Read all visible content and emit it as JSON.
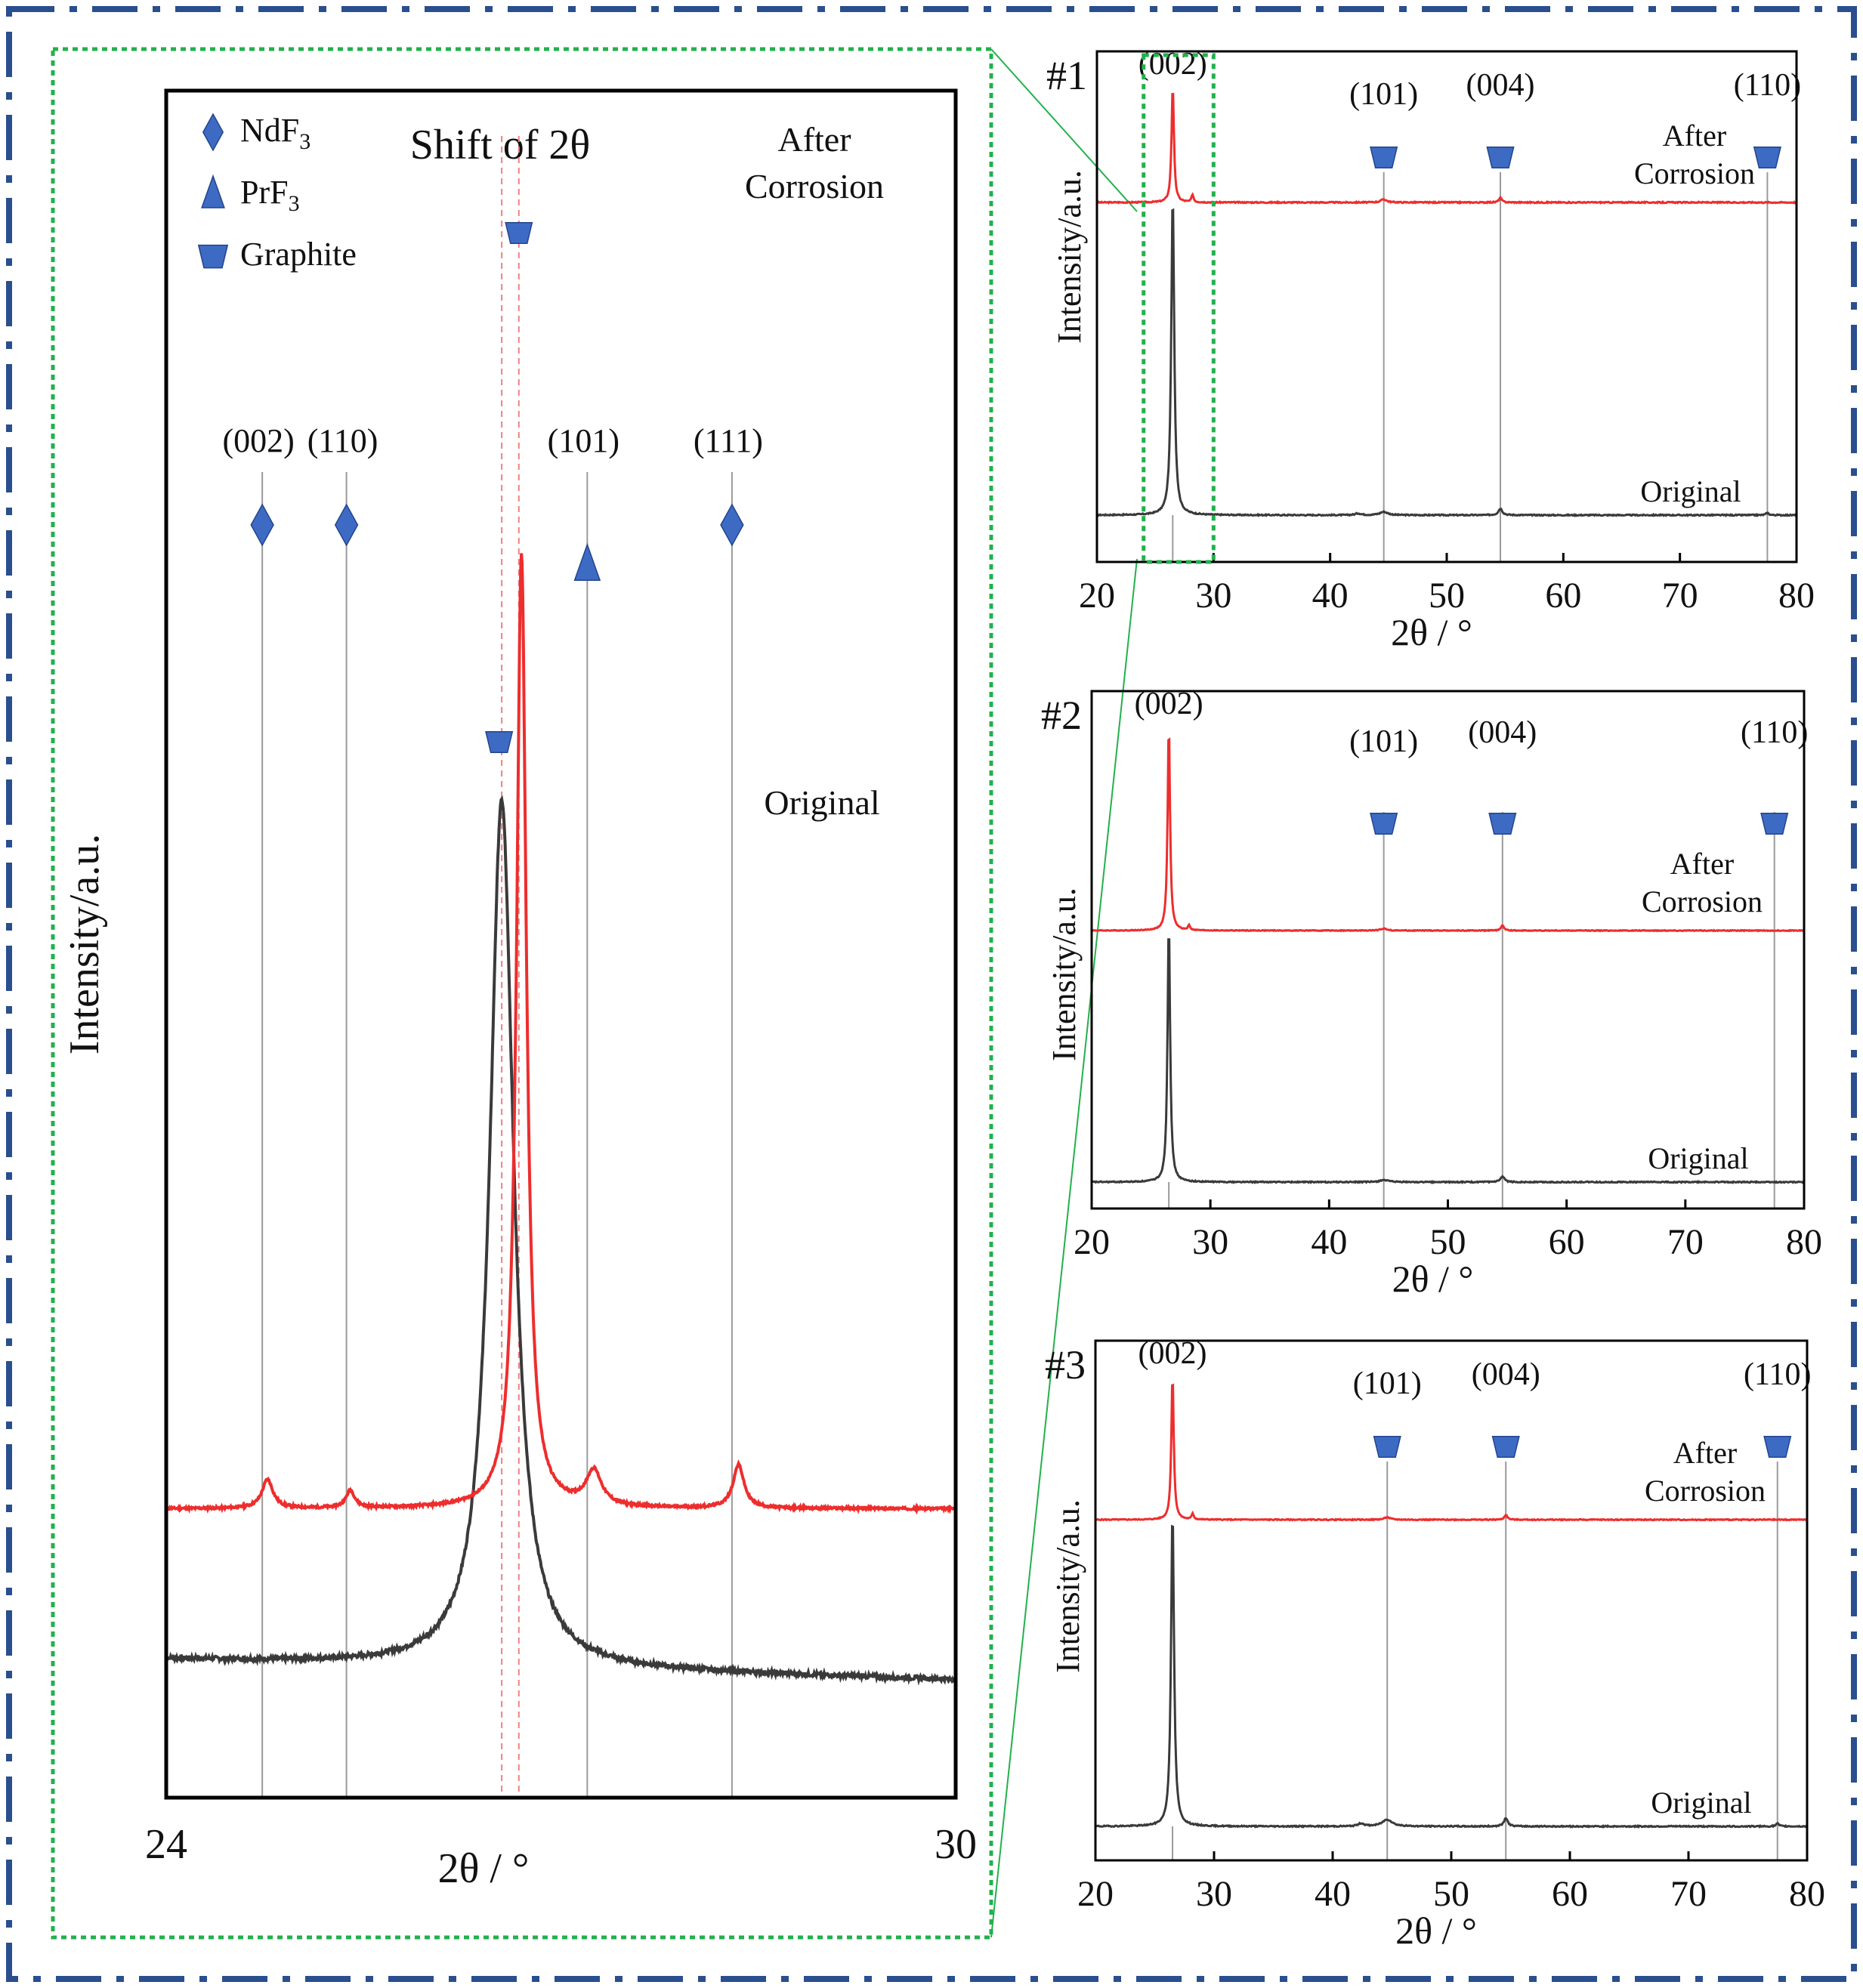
{
  "colors": {
    "frame": "#2a4f8f",
    "zoom_box": "#22b14c",
    "after": "#ee2d2d",
    "original": "#3a3a3a",
    "marker": "#3d6bc4",
    "marker_edge": "#23448c",
    "ref_line": "#9a9a9a",
    "shift_line": "#f08080"
  },
  "chart_data": [
    {
      "id": "main",
      "type": "line",
      "title": "Shift of 2θ",
      "xlabel": "2θ / °",
      "ylabel": "Intensity/a.u.",
      "xlim": [
        24,
        30
      ],
      "x_tick_labels": [
        "24",
        "30"
      ],
      "series_labels": {
        "after": "After\nCorrosion",
        "original": "Original"
      },
      "series": [
        {
          "name": "After Corrosion",
          "baseline": 0.62,
          "peaks": [
            {
              "x": 26.7,
              "h": 3.3,
              "w": 0.045
            },
            {
              "x": 24.77,
              "h": 0.1,
              "w": 0.05
            },
            {
              "x": 25.4,
              "h": 0.06,
              "w": 0.04
            },
            {
              "x": 27.25,
              "h": 0.12,
              "w": 0.07
            },
            {
              "x": 28.35,
              "h": 0.15,
              "w": 0.05
            }
          ]
        },
        {
          "name": "Original",
          "baseline": 0.1,
          "slope": -0.012,
          "peaks": [
            {
              "x": 26.55,
              "h": 3.0,
              "w": 0.11
            }
          ]
        }
      ],
      "legend": [
        {
          "marker": "diamond",
          "label": "NdF",
          "sub": "3"
        },
        {
          "marker": "triangle",
          "label": "PrF",
          "sub": "3"
        },
        {
          "marker": "trapezoid",
          "label": "Graphite",
          "sub": ""
        }
      ],
      "reference_lines": [
        {
          "x": 24.73,
          "label": "(002)",
          "marker": "diamond"
        },
        {
          "x": 25.37,
          "label": "(110)",
          "marker": "diamond"
        },
        {
          "x": 27.2,
          "label": "(101)",
          "marker": "triangle"
        },
        {
          "x": 28.3,
          "label": "(111)",
          "marker": "diamond"
        }
      ],
      "peak_markers": [
        {
          "x": 26.68,
          "series": "After Corrosion",
          "marker": "trapezoid"
        },
        {
          "x": 26.53,
          "series": "Original",
          "marker": "trapezoid"
        }
      ],
      "shift_lines": [
        26.55,
        26.68
      ]
    },
    {
      "id": "#1",
      "type": "line",
      "label": "#1",
      "xlim": [
        20,
        80
      ],
      "xticks": [
        20,
        30,
        40,
        50,
        60,
        70,
        80
      ],
      "xlabel": "2θ / °",
      "ylabel": "Intensity/a.u.",
      "series_labels": {
        "after": "After\nCorrosion",
        "original": "Original"
      },
      "peak_labels": [
        {
          "x": 26.5,
          "label": "(002)"
        },
        {
          "x": 44.6,
          "label": "(101)"
        },
        {
          "x": 54.6,
          "label": "(004)"
        },
        {
          "x": 77.5,
          "label": "(110)"
        }
      ],
      "graphite_markers": [
        44.6,
        54.6,
        77.5
      ],
      "series": [
        {
          "name": "After Corrosion",
          "baseline": 0.62,
          "peaks": [
            {
              "x": 26.5,
              "h": 0.15,
              "w": 0.12
            },
            {
              "x": 28.2,
              "h": 0.01,
              "w": 0.1
            },
            {
              "x": 44.6,
              "h": 0.004,
              "w": 0.3
            },
            {
              "x": 54.6,
              "h": 0.006,
              "w": 0.15
            }
          ]
        },
        {
          "name": "Original",
          "baseline": 0.0,
          "peaks": [
            {
              "x": 26.5,
              "h": 0.58,
              "w": 0.15
            },
            {
              "x": 44.6,
              "h": 0.006,
              "w": 0.4
            },
            {
              "x": 42.4,
              "h": 0.003,
              "w": 0.3
            },
            {
              "x": 54.6,
              "h": 0.012,
              "w": 0.2
            },
            {
              "x": 77.5,
              "h": 0.004,
              "w": 0.15
            }
          ]
        }
      ],
      "zoom_box": [
        24,
        30
      ]
    },
    {
      "id": "#2",
      "type": "line",
      "label": "#2",
      "xlim": [
        20,
        80
      ],
      "xticks": [
        20,
        30,
        40,
        50,
        60,
        70,
        80
      ],
      "xlabel": "2θ / °",
      "ylabel": "Intensity/a.u.",
      "series_labels": {
        "after": "After\nCorrosion",
        "original": "Original"
      },
      "peak_labels": [
        {
          "x": 26.5,
          "label": "(002)"
        },
        {
          "x": 44.6,
          "label": "(101)"
        },
        {
          "x": 54.6,
          "label": "(004)"
        },
        {
          "x": 77.5,
          "label": "(110)"
        }
      ],
      "graphite_markers": [
        44.6,
        54.6,
        77.5
      ],
      "series": [
        {
          "name": "After Corrosion",
          "baseline": 0.52,
          "peaks": [
            {
              "x": 26.5,
              "h": 0.4,
              "w": 0.12
            },
            {
              "x": 28.2,
              "h": 0.01,
              "w": 0.1
            },
            {
              "x": 44.6,
              "h": 0.004,
              "w": 0.3
            },
            {
              "x": 54.6,
              "h": 0.01,
              "w": 0.15
            }
          ]
        },
        {
          "name": "Original",
          "baseline": 0.0,
          "peaks": [
            {
              "x": 26.5,
              "h": 0.48,
              "w": 0.13
            },
            {
              "x": 44.6,
              "h": 0.004,
              "w": 0.4
            },
            {
              "x": 54.6,
              "h": 0.01,
              "w": 0.2
            }
          ]
        }
      ]
    },
    {
      "id": "#3",
      "type": "line",
      "label": "#3",
      "xlim": [
        20,
        80
      ],
      "xticks": [
        20,
        30,
        40,
        50,
        60,
        70,
        80
      ],
      "xlabel": "2θ / °",
      "ylabel": "Intensity/a.u.",
      "series_labels": {
        "after": "After\nCorrosion",
        "original": "Original"
      },
      "peak_labels": [
        {
          "x": 26.5,
          "label": "(002)"
        },
        {
          "x": 44.6,
          "label": "(101)"
        },
        {
          "x": 54.6,
          "label": "(004)"
        },
        {
          "x": 77.5,
          "label": "(110)"
        }
      ],
      "graphite_markers": [
        44.6,
        54.6,
        77.5
      ],
      "series": [
        {
          "name": "After Corrosion",
          "baseline": 0.6,
          "peaks": [
            {
              "x": 26.5,
              "h": 0.24,
              "w": 0.12
            },
            {
              "x": 28.2,
              "h": 0.01,
              "w": 0.1
            },
            {
              "x": 44.6,
              "h": 0.004,
              "w": 0.3
            },
            {
              "x": 54.6,
              "h": 0.008,
              "w": 0.15
            }
          ]
        },
        {
          "name": "Original",
          "baseline": 0.0,
          "peaks": [
            {
              "x": 26.5,
              "h": 0.55,
              "w": 0.15
            },
            {
              "x": 44.6,
              "h": 0.012,
              "w": 0.5
            },
            {
              "x": 42.4,
              "h": 0.005,
              "w": 0.3
            },
            {
              "x": 54.6,
              "h": 0.014,
              "w": 0.2
            },
            {
              "x": 77.5,
              "h": 0.005,
              "w": 0.15
            }
          ]
        }
      ]
    }
  ]
}
